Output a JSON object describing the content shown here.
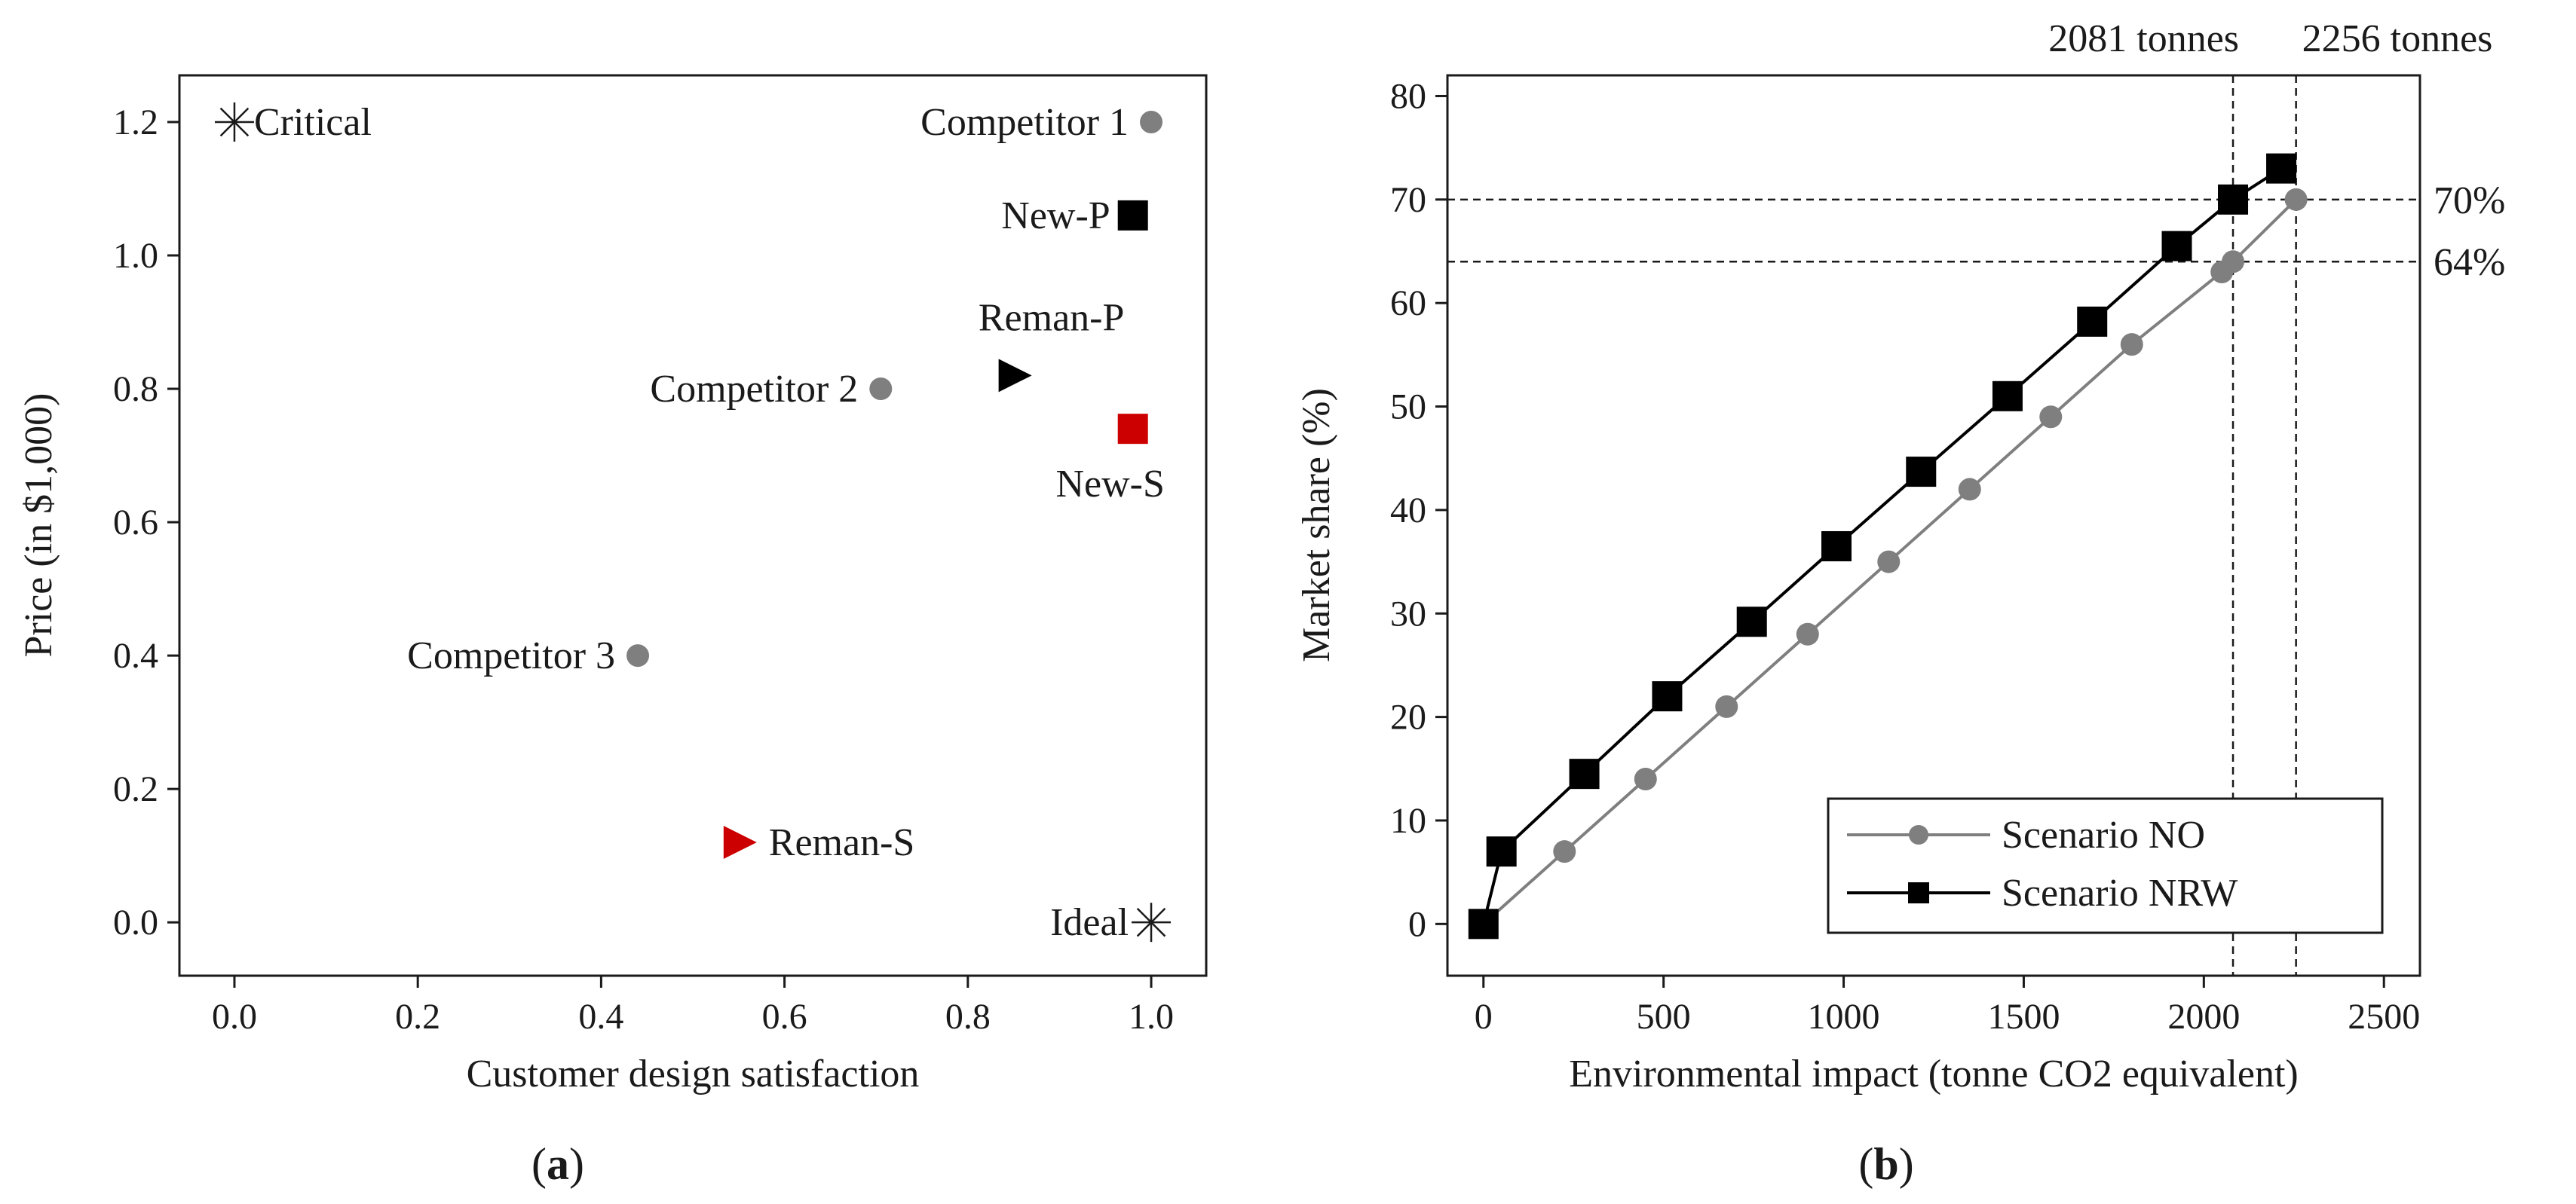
{
  "chart_data": [
    {
      "panel": "(a)",
      "panel_letter": "a",
      "type": "scatter",
      "xlabel": "Customer design satisfaction",
      "ylabel": "Price (in $1,000)",
      "xlim": [
        -0.06,
        1.06
      ],
      "ylim": [
        -0.08,
        1.27
      ],
      "xticks": [
        0.0,
        0.2,
        0.4,
        0.6,
        0.8,
        1.0
      ],
      "xtick_labels": [
        "0.0",
        "0.2",
        "0.4",
        "0.6",
        "0.8",
        "1.0"
      ],
      "yticks": [
        0.0,
        0.2,
        0.4,
        0.6,
        0.8,
        1.0,
        1.2
      ],
      "ytick_labels": [
        "0.0",
        "0.2",
        "0.4",
        "0.6",
        "0.8",
        "1.0",
        "1.2"
      ],
      "points": [
        {
          "name": "Critical",
          "x": 0.0,
          "y": 1.2,
          "marker": "star",
          "color": "#1a1a1a",
          "label_pos": "right"
        },
        {
          "name": "Competitor 1",
          "x": 1.0,
          "y": 1.2,
          "marker": "circle",
          "color": "#7f7f7f",
          "label_pos": "left"
        },
        {
          "name": "New-P",
          "x": 0.98,
          "y": 1.06,
          "marker": "square",
          "color": "#000000",
          "label_pos": "left"
        },
        {
          "name": "Reman-P",
          "x": 0.85,
          "y": 0.82,
          "marker": "triangle-right",
          "color": "#000000",
          "label_pos": "above"
        },
        {
          "name": "Competitor 2",
          "x": 0.705,
          "y": 0.8,
          "marker": "circle",
          "color": "#7f7f7f",
          "label_pos": "left"
        },
        {
          "name": "New-S",
          "x": 0.98,
          "y": 0.74,
          "marker": "square",
          "color": "#cc0000",
          "label_pos": "below"
        },
        {
          "name": "Competitor 3",
          "x": 0.44,
          "y": 0.4,
          "marker": "circle",
          "color": "#7f7f7f",
          "label_pos": "left"
        },
        {
          "name": "Reman-S",
          "x": 0.55,
          "y": 0.12,
          "marker": "triangle-right",
          "color": "#cc0000",
          "label_pos": "right"
        },
        {
          "name": "Ideal",
          "x": 1.0,
          "y": 0.0,
          "marker": "star",
          "color": "#1a1a1a",
          "label_pos": "left"
        }
      ]
    },
    {
      "panel": "(b)",
      "panel_letter": "b",
      "type": "line",
      "xlabel": "Environmental impact (tonne CO2 equivalent)",
      "ylabel": "Market share (%)",
      "xlim": [
        -100,
        2600
      ],
      "ylim": [
        -5,
        82
      ],
      "xticks": [
        0,
        500,
        1000,
        1500,
        2000,
        2500
      ],
      "xtick_labels": [
        "0",
        "500",
        "1000",
        "1500",
        "2000",
        "2500"
      ],
      "yticks": [
        0,
        10,
        20,
        30,
        40,
        50,
        60,
        70,
        80
      ],
      "ytick_labels": [
        "0",
        "10",
        "20",
        "30",
        "40",
        "50",
        "60",
        "70",
        "80"
      ],
      "legend_position": "bottom-right",
      "series": [
        {
          "name": "Scenario NO",
          "color": "#7f7f7f",
          "marker": "circle",
          "x": [
            0,
            225,
            450,
            675,
            900,
            1125,
            1350,
            1575,
            1800,
            2050,
            2081,
            2256
          ],
          "y": [
            0,
            7,
            14,
            21,
            28,
            35,
            42,
            49,
            56,
            63,
            64,
            70
          ]
        },
        {
          "name": "Scenario NRW",
          "color": "#000000",
          "marker": "square",
          "x": [
            0,
            50,
            280,
            510,
            745,
            980,
            1215,
            1455,
            1690,
            1925,
            2081,
            2215
          ],
          "y": [
            0,
            7,
            14.5,
            22,
            29.2,
            36.5,
            43.7,
            51,
            58.2,
            65.5,
            70,
            73
          ]
        }
      ],
      "reference_lines": {
        "vertical": [
          {
            "x": 2081,
            "label": "2081 tonnes"
          },
          {
            "x": 2256,
            "label": "2256 tonnes"
          }
        ],
        "horizontal": [
          {
            "y": 70,
            "label": "70%"
          },
          {
            "y": 64,
            "label": "64%"
          }
        ]
      }
    }
  ]
}
